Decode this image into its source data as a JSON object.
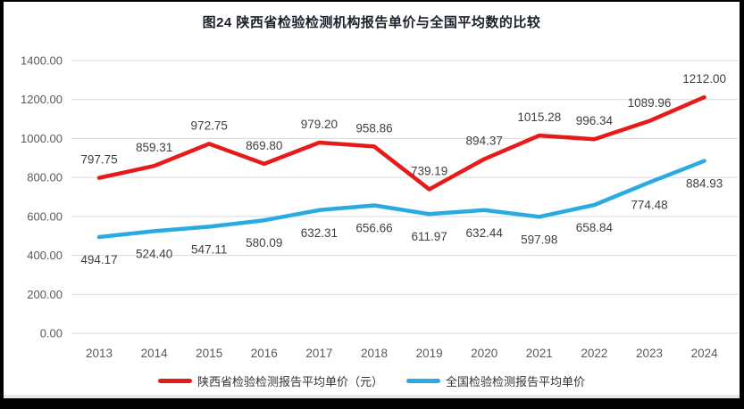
{
  "title": "图24 陕西省检验检测机构报告单价与全国平均数的比较",
  "colors": {
    "series1": "#e71a1a",
    "series2": "#29abe2",
    "grid": "#d9d9d9",
    "axis_text": "#595959",
    "label_text": "#404040",
    "title_text": "#1c202b",
    "border": "#000000"
  },
  "chart_data": {
    "type": "line",
    "title": "图24 陕西省检验检测机构报告单价与全国平均数的比较",
    "categories": [
      "2013",
      "2014",
      "2015",
      "2016",
      "2017",
      "2018",
      "2019",
      "2020",
      "2021",
      "2022",
      "2023",
      "2024"
    ],
    "series": [
      {
        "name": "陕西省检验检测报告平均单价（元）",
        "color_key": "series1",
        "label_position": "above",
        "values": [
          797.75,
          859.31,
          972.75,
          869.8,
          979.2,
          958.86,
          739.19,
          894.37,
          1015.28,
          996.34,
          1089.96,
          1212.0
        ]
      },
      {
        "name": "全国检验检测报告平均单价",
        "color_key": "series2",
        "label_position": "below",
        "values": [
          494.17,
          524.4,
          547.11,
          580.09,
          632.31,
          656.66,
          611.97,
          632.44,
          597.98,
          658.84,
          774.48,
          884.93
        ]
      }
    ],
    "y_ticks": [
      "1400.00",
      "1200.00",
      "1000.00",
      "800.00",
      "600.00",
      "400.00",
      "200.00",
      "0.00"
    ],
    "ylim": [
      0,
      1400
    ],
    "y_tick_step": 200,
    "grid": true,
    "legend_position": "bottom",
    "xlabel": "",
    "ylabel": ""
  }
}
